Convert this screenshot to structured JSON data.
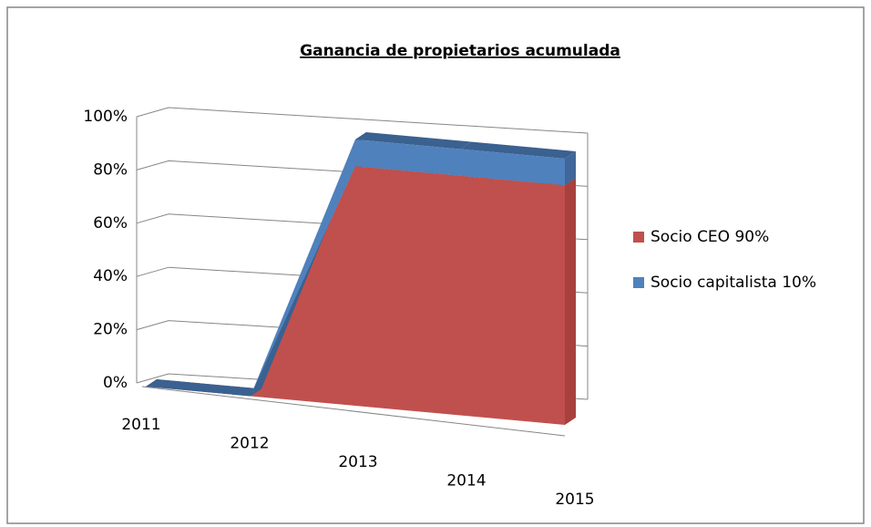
{
  "chart_data": {
    "type": "area3d",
    "title": "Ganancia de propietarios acumulada",
    "categories": [
      "2011",
      "2012",
      "2013",
      "2014",
      "2015"
    ],
    "series": [
      {
        "name": "Socio CEO 90%",
        "color": "#c0504d",
        "values": [
          0,
          0,
          90,
          90,
          90
        ]
      },
      {
        "name": "Socio capitalista 10%",
        "color": "#4f81bd",
        "values": [
          0,
          0,
          10,
          10,
          10
        ]
      }
    ],
    "stacked": true,
    "ylim": [
      0,
      100
    ],
    "yticks": [
      {
        "value": 0,
        "label": "0%"
      },
      {
        "value": 20,
        "label": "20%"
      },
      {
        "value": 40,
        "label": "40%"
      },
      {
        "value": 60,
        "label": "60%"
      },
      {
        "value": 80,
        "label": "80%"
      },
      {
        "value": 100,
        "label": "100%"
      }
    ],
    "grid": true,
    "legend": "right"
  }
}
